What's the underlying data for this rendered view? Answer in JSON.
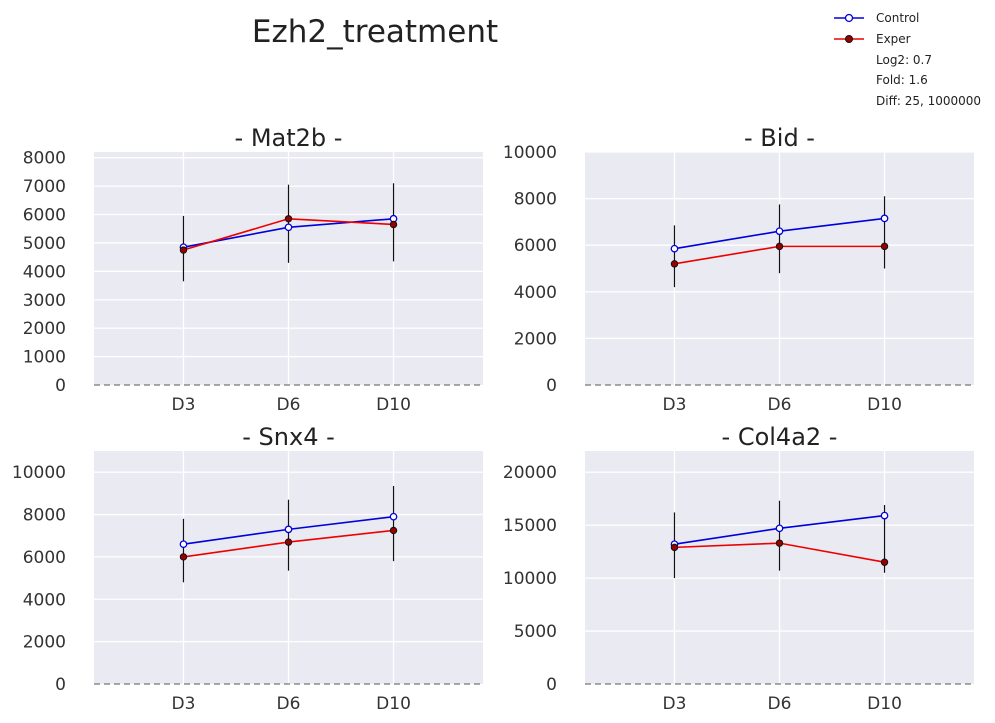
{
  "figure": {
    "title": "Ezh2_treatment",
    "colors": {
      "control": "#0000dd",
      "exper": "#ee0000",
      "background": "#eaeaf2",
      "grid": "#ffffff"
    }
  },
  "legend": {
    "entries": [
      {
        "label": "Control",
        "color": "#0000dd",
        "marker_fill": "#ffffff"
      },
      {
        "label": "Exper",
        "color": "#ee0000",
        "marker_fill": "#990000"
      }
    ],
    "notes": [
      "Log2: 0.7",
      "Fold: 1.6",
      "Diff: 25, 1000000"
    ]
  },
  "chart_data": [
    {
      "type": "line",
      "title": "- Mat2b -",
      "categories": [
        "D3",
        "D6",
        "D10"
      ],
      "ylim": [
        0,
        8200
      ],
      "yticks": [
        0,
        1000,
        2000,
        3000,
        4000,
        5000,
        6000,
        7000,
        8000
      ],
      "series": [
        {
          "name": "Control",
          "values": [
            4850,
            5550,
            5850
          ]
        },
        {
          "name": "Exper",
          "values": [
            4750,
            5850,
            5650
          ],
          "errors": [
            [
              3650,
              5950
            ],
            [
              4300,
              7050
            ],
            [
              4350,
              7100
            ]
          ]
        }
      ],
      "grid": true
    },
    {
      "type": "line",
      "title": "- Bid -",
      "categories": [
        "D3",
        "D6",
        "D10"
      ],
      "ylim": [
        0,
        10000
      ],
      "yticks": [
        0,
        2000,
        4000,
        6000,
        8000,
        10000
      ],
      "series": [
        {
          "name": "Control",
          "values": [
            5850,
            6600,
            7150
          ]
        },
        {
          "name": "Exper",
          "values": [
            5200,
            5950,
            5950
          ],
          "errors": [
            [
              4200,
              6850
            ],
            [
              4800,
              7750
            ],
            [
              5000,
              8100
            ]
          ]
        }
      ],
      "grid": true
    },
    {
      "type": "line",
      "title": "- Snx4 -",
      "categories": [
        "D3",
        "D6",
        "D10"
      ],
      "ylim": [
        0,
        11000
      ],
      "yticks": [
        0,
        2000,
        4000,
        6000,
        8000,
        10000
      ],
      "series": [
        {
          "name": "Control",
          "values": [
            6600,
            7300,
            7900
          ]
        },
        {
          "name": "Exper",
          "values": [
            6000,
            6700,
            7250
          ],
          "errors": [
            [
              4800,
              7800
            ],
            [
              5350,
              8700
            ],
            [
              5800,
              9350
            ]
          ]
        }
      ],
      "grid": true
    },
    {
      "type": "line",
      "title": "- Col4a2 -",
      "categories": [
        "D3",
        "D6",
        "D10"
      ],
      "ylim": [
        0,
        22000
      ],
      "yticks": [
        0,
        5000,
        10000,
        15000,
        20000
      ],
      "series": [
        {
          "name": "Control",
          "values": [
            13200,
            14700,
            15900
          ]
        },
        {
          "name": "Exper",
          "values": [
            12900,
            13300,
            11500
          ],
          "errors": [
            [
              10000,
              16200
            ],
            [
              10700,
              17300
            ],
            [
              10500,
              16900
            ]
          ]
        }
      ],
      "grid": true
    }
  ]
}
